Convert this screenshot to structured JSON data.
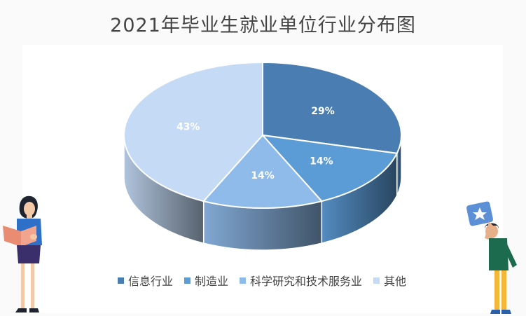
{
  "title": "2021年毕业生就业单位行业分布图",
  "chart_data": {
    "type": "pie",
    "style": "3d",
    "title": "2021年毕业生就业单位行业分布图",
    "categories": [
      "信息行业",
      "制造业",
      "科学研究和技术服务业",
      "其他"
    ],
    "values": [
      29,
      14,
      14,
      43
    ],
    "labels": [
      "29%",
      "14%",
      "14%",
      "43%"
    ],
    "unit": "%",
    "colors": [
      "#4a7eb3",
      "#5c9cd6",
      "#8fbbea",
      "#c4daf5"
    ],
    "legend_position": "bottom"
  }
}
